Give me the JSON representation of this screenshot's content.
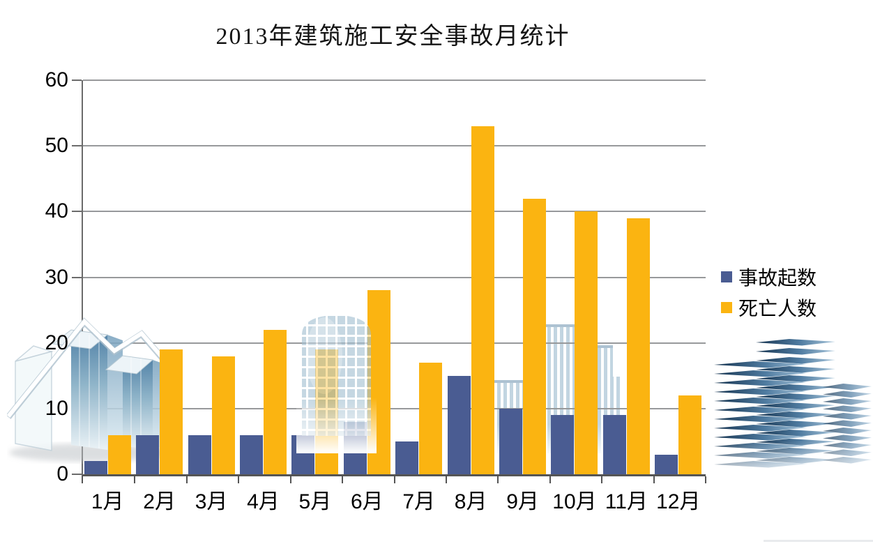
{
  "chart_data": {
    "type": "bar",
    "title": "2013年建筑施工安全事故月统计",
    "categories": [
      "1月",
      "2月",
      "3月",
      "4月",
      "5月",
      "6月",
      "7月",
      "8月",
      "9月",
      "10月",
      "11月",
      "12月"
    ],
    "series": [
      {
        "name": "事故起数",
        "color": "#4A5C92",
        "values": [
          2,
          6,
          6,
          6,
          6,
          8,
          5,
          15,
          10,
          9,
          9,
          3
        ]
      },
      {
        "name": "死亡人数",
        "color": "#FBB411",
        "values": [
          6,
          19,
          18,
          22,
          19,
          28,
          17,
          53,
          42,
          40,
          39,
          12
        ]
      }
    ],
    "xlabel": "",
    "ylabel": "",
    "ylim": [
      0,
      60
    ],
    "yticks": [
      0,
      10,
      20,
      30,
      40,
      50,
      60
    ],
    "grid": true,
    "legend_position": "right",
    "gridline_color": "#97999B",
    "axis_color": "#555555",
    "background": "#FFFFFF"
  },
  "legend": {
    "items": [
      {
        "label": "事故起数",
        "color": "#4A5C92"
      },
      {
        "label": "死亡人数",
        "color": "#FBB411"
      }
    ]
  },
  "decorations": {
    "left": "glass-towers-watermark",
    "center": "cylinder-building-watermark",
    "cluster": "striped-buildings-watermark",
    "right": "stacked-slab-buildings-graphic"
  }
}
